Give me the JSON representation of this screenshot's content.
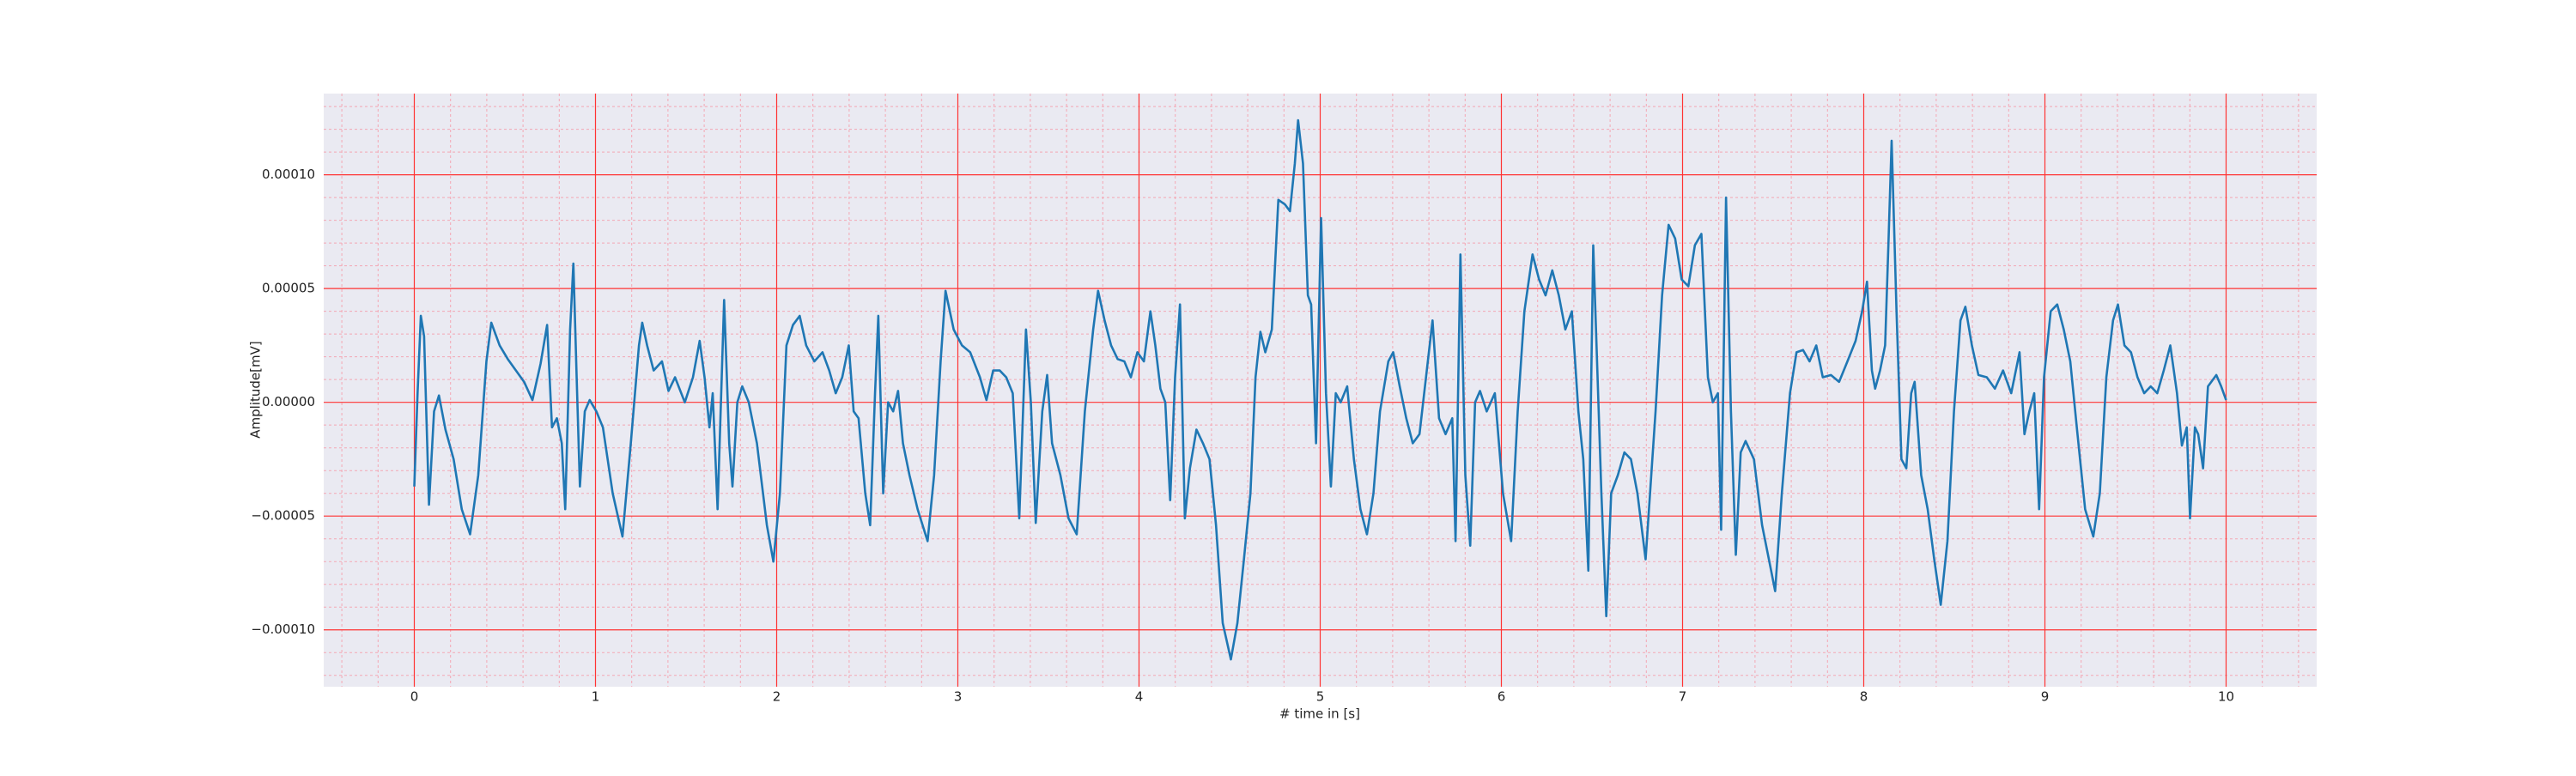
{
  "chart_data": {
    "type": "line",
    "xlabel": "# time in [s]",
    "ylabel": "Amplitude[mV]",
    "xlim": [
      -0.5,
      10.5
    ],
    "ylim": [
      -0.000125,
      0.0001357
    ],
    "xticks": [
      0,
      1,
      2,
      3,
      4,
      5,
      6,
      7,
      8,
      9,
      10
    ],
    "yticks": [
      {
        "value": -0.0001,
        "label": "−0.00010"
      },
      {
        "value": -5e-05,
        "label": "−0.00005"
      },
      {
        "value": 0,
        "label": "0.00000"
      },
      {
        "value": 5e-05,
        "label": "0.00005"
      },
      {
        "value": 0.0001,
        "label": "0.00010"
      }
    ],
    "grid": true,
    "minor_grid": true,
    "grid_color": "#ff3333",
    "minor_grid_color": "#f4a7b4",
    "background": "#eaeaf2",
    "series": [
      {
        "color": "#1f77b4",
        "x": [
          0,
          0.018,
          0.036,
          0.054,
          0.081,
          0.109,
          0.136,
          0.172,
          0.217,
          0.262,
          0.308,
          0.353,
          0.398,
          0.425,
          0.471,
          0.516,
          0.561,
          0.606,
          0.652,
          0.697,
          0.733,
          0.76,
          0.787,
          0.814,
          0.833,
          0.86,
          0.878,
          0.896,
          0.914,
          0.941,
          0.968,
          1.005,
          1.041,
          1.095,
          1.149,
          1.195,
          1.24,
          1.258,
          1.285,
          1.321,
          1.367,
          1.403,
          1.439,
          1.493,
          1.538,
          1.575,
          1.602,
          1.629,
          1.647,
          1.674,
          1.71,
          1.738,
          1.756,
          1.783,
          1.81,
          1.846,
          1.891,
          1.946,
          1.982,
          2.018,
          2.054,
          2.09,
          2.127,
          2.163,
          2.208,
          2.253,
          2.29,
          2.326,
          2.362,
          2.398,
          2.425,
          2.452,
          2.489,
          2.516,
          2.543,
          2.561,
          2.588,
          2.615,
          2.643,
          2.67,
          2.697,
          2.733,
          2.778,
          2.833,
          2.869,
          2.905,
          2.932,
          2.977,
          3.023,
          3.068,
          3.122,
          3.158,
          3.195,
          3.231,
          3.267,
          3.303,
          3.339,
          3.376,
          3.403,
          3.43,
          3.466,
          3.493,
          3.52,
          3.566,
          3.611,
          3.656,
          3.701,
          3.747,
          3.774,
          3.81,
          3.846,
          3.882,
          3.919,
          3.955,
          3.991,
          4.027,
          4.063,
          4.09,
          4.118,
          4.145,
          4.172,
          4.199,
          4.226,
          4.253,
          4.281,
          4.317,
          4.353,
          4.389,
          4.425,
          4.462,
          4.507,
          4.543,
          4.579,
          4.615,
          4.643,
          4.67,
          4.697,
          4.733,
          4.769,
          4.805,
          4.833,
          4.86,
          4.878,
          4.905,
          4.932,
          4.95,
          4.977,
          5.005,
          5.032,
          5.059,
          5.086,
          5.113,
          5.149,
          5.186,
          5.222,
          5.258,
          5.294,
          5.33,
          5.376,
          5.403,
          5.439,
          5.475,
          5.511,
          5.548,
          5.584,
          5.62,
          5.656,
          5.692,
          5.729,
          5.747,
          5.774,
          5.801,
          5.828,
          5.855,
          5.882,
          5.919,
          5.964,
          6.009,
          6.054,
          6.09,
          6.127,
          6.172,
          6.208,
          6.244,
          6.281,
          6.317,
          6.353,
          6.389,
          6.425,
          6.452,
          6.48,
          6.507,
          6.552,
          6.579,
          6.606,
          6.643,
          6.679,
          6.715,
          6.751,
          6.796,
          6.851,
          6.887,
          6.923,
          6.959,
          6.995,
          7.032,
          7.068,
          7.104,
          7.14,
          7.167,
          7.195,
          7.213,
          7.24,
          7.267,
          7.294,
          7.321,
          7.348,
          7.394,
          7.439,
          7.484,
          7.511,
          7.548,
          7.593,
          7.629,
          7.665,
          7.701,
          7.738,
          7.774,
          7.819,
          7.864,
          7.91,
          7.955,
          7.991,
          8.018,
          8.045,
          8.063,
          8.09,
          8.118,
          8.136,
          8.154,
          8.181,
          8.208,
          8.235,
          8.262,
          8.281,
          8.317,
          8.353,
          8.389,
          8.425,
          8.462,
          8.498,
          8.534,
          8.561,
          8.597,
          8.633,
          8.679,
          8.724,
          8.769,
          8.814,
          8.86,
          8.887,
          8.914,
          8.941,
          8.968,
          8.995,
          9.032,
          9.068,
          9.104,
          9.14,
          9.176,
          9.222,
          9.267,
          9.303,
          9.339,
          9.376,
          9.403,
          9.439,
          9.475,
          9.511,
          9.548,
          9.584,
          9.62,
          9.656,
          9.692,
          9.729,
          9.756,
          9.783,
          9.801,
          9.828,
          9.846,
          9.873,
          9.9,
          9.946,
          9.973,
          10
        ],
        "values": [
          -3.7e-05,
          4e-06,
          3.8e-05,
          2.9e-05,
          -4.5e-05,
          -4e-06,
          3e-06,
          -1.2e-05,
          -2.5e-05,
          -4.7e-05,
          -5.8e-05,
          -3.2e-05,
          1.8e-05,
          3.5e-05,
          2.5e-05,
          1.9e-05,
          1.4e-05,
          9e-06,
          1e-06,
          1.7e-05,
          3.4e-05,
          -1.1e-05,
          -7e-06,
          -1.8e-05,
          -4.7e-05,
          3.2e-05,
          6.1e-05,
          1.1e-05,
          -3.7e-05,
          -4e-06,
          1e-06,
          -4e-06,
          -1.1e-05,
          -4e-05,
          -5.9e-05,
          -1.8e-05,
          2.5e-05,
          3.5e-05,
          2.5e-05,
          1.4e-05,
          1.8e-05,
          5e-06,
          1.1e-05,
          0,
          1.1e-05,
          2.7e-05,
          1.1e-05,
          -1.1e-05,
          4e-06,
          -4.7e-05,
          4.5e-05,
          -1.8e-05,
          -3.7e-05,
          0,
          7e-06,
          0,
          -1.8e-05,
          -5.4e-05,
          -7e-05,
          -4e-05,
          2.5e-05,
          3.4e-05,
          3.8e-05,
          2.5e-05,
          1.8e-05,
          2.2e-05,
          1.4e-05,
          4e-06,
          1.1e-05,
          2.5e-05,
          -4e-06,
          -7e-06,
          -4e-05,
          -5.4e-05,
          4e-06,
          3.8e-05,
          -4e-05,
          0,
          -4e-06,
          5e-06,
          -1.8e-05,
          -3.2e-05,
          -4.7e-05,
          -6.1e-05,
          -3.2e-05,
          1.8e-05,
          4.9e-05,
          3.2e-05,
          2.5e-05,
          2.2e-05,
          1.1e-05,
          1e-06,
          1.4e-05,
          1.4e-05,
          1.1e-05,
          4e-06,
          -5.1e-05,
          3.2e-05,
          0,
          -5.3e-05,
          -4e-06,
          1.2e-05,
          -1.8e-05,
          -3.2e-05,
          -5.1e-05,
          -5.8e-05,
          -4e-06,
          3.2e-05,
          4.9e-05,
          3.6e-05,
          2.5e-05,
          1.9e-05,
          1.8e-05,
          1.1e-05,
          2.2e-05,
          1.8e-05,
          4e-05,
          2.5e-05,
          6e-06,
          0,
          -4.3e-05,
          1.1e-05,
          4.3e-05,
          -5.1e-05,
          -2.9e-05,
          -1.2e-05,
          -1.8e-05,
          -2.5e-05,
          -5.4e-05,
          -9.7e-05,
          -0.000113,
          -9.7e-05,
          -6.9e-05,
          -4e-05,
          1.1e-05,
          3.1e-05,
          2.2e-05,
          3.2e-05,
          8.9e-05,
          8.7e-05,
          8.4e-05,
          0.000105,
          0.000124,
          0.000105,
          4.7e-05,
          4.3e-05,
          -1.8e-05,
          8.1e-05,
          4e-06,
          -3.7e-05,
          4e-06,
          0,
          7e-06,
          -2.5e-05,
          -4.7e-05,
          -5.8e-05,
          -4e-05,
          -4e-06,
          1.8e-05,
          2.2e-05,
          7e-06,
          -7e-06,
          -1.8e-05,
          -1.4e-05,
          1.1e-05,
          3.6e-05,
          -7e-06,
          -1.4e-05,
          -7e-06,
          -6.1e-05,
          6.5e-05,
          -3.2e-05,
          -6.3e-05,
          0,
          5e-06,
          -4e-06,
          4e-06,
          -4e-05,
          -6.1e-05,
          -4e-06,
          4e-05,
          6.5e-05,
          5.4e-05,
          4.7e-05,
          5.8e-05,
          4.7e-05,
          3.2e-05,
          4e-05,
          -4e-06,
          -2.5e-05,
          -7.4e-05,
          6.9e-05,
          -4e-05,
          -9.4e-05,
          -4e-05,
          -3.2e-05,
          -2.2e-05,
          -2.5e-05,
          -4e-05,
          -6.9e-05,
          -4e-06,
          4.7e-05,
          7.8e-05,
          7.2e-05,
          5.4e-05,
          5.1e-05,
          6.9e-05,
          7.4e-05,
          1.1e-05,
          0,
          4e-06,
          -5.6e-05,
          9e-05,
          -4e-06,
          -6.7e-05,
          -2.2e-05,
          -1.7e-05,
          -2.5e-05,
          -5.4e-05,
          -7.2e-05,
          -8.3e-05,
          -4e-05,
          4e-06,
          2.2e-05,
          2.3e-05,
          1.8e-05,
          2.5e-05,
          1.1e-05,
          1.2e-05,
          9e-06,
          1.8e-05,
          2.7e-05,
          4e-05,
          5.3e-05,
          1.4e-05,
          6e-06,
          1.4e-05,
          2.5e-05,
          6.9e-05,
          0.000115,
          4e-05,
          -2.5e-05,
          -2.9e-05,
          4e-06,
          9e-06,
          -3.2e-05,
          -4.7e-05,
          -6.9e-05,
          -8.9e-05,
          -6.1e-05,
          -4e-06,
          3.6e-05,
          4.2e-05,
          2.5e-05,
          1.2e-05,
          1.1e-05,
          6e-06,
          1.4e-05,
          4e-06,
          2.2e-05,
          -1.4e-05,
          -4e-06,
          4e-06,
          -4.7e-05,
          1.1e-05,
          4e-05,
          4.3e-05,
          3.2e-05,
          1.8e-05,
          -1.1e-05,
          -4.7e-05,
          -5.9e-05,
          -4e-05,
          1.1e-05,
          3.6e-05,
          4.3e-05,
          2.5e-05,
          2.2e-05,
          1.1e-05,
          4e-06,
          7e-06,
          4e-06,
          1.4e-05,
          2.5e-05,
          4e-06,
          -1.9e-05,
          -1.1e-05,
          -5.1e-05,
          -1.1e-05,
          -1.4e-05,
          -2.9e-05,
          7e-06,
          1.2e-05,
          7e-06,
          1e-06
        ]
      }
    ]
  }
}
